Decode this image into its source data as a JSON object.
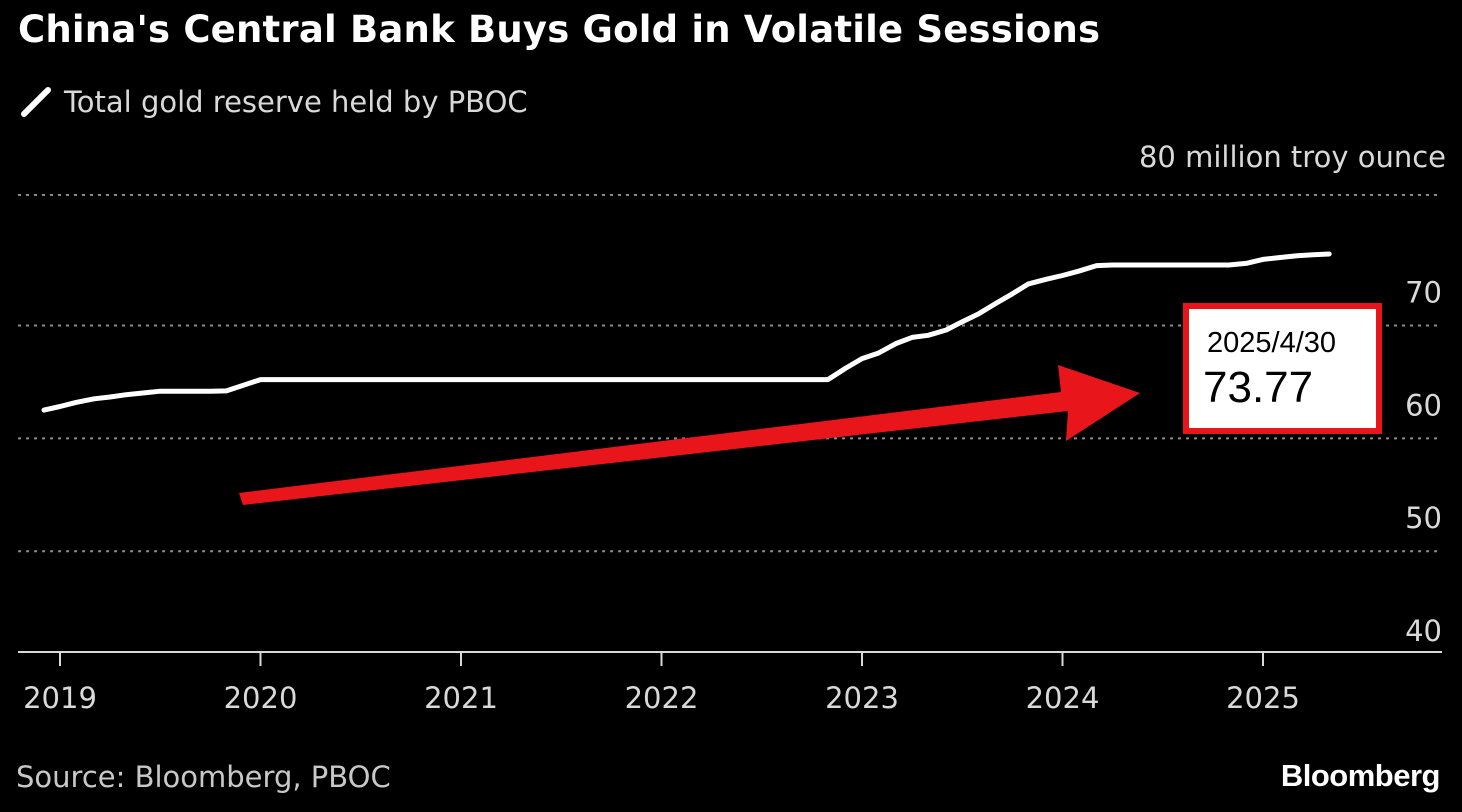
{
  "header": {
    "title": "China's Central Bank Buys Gold in Volatile Sessions"
  },
  "legend": {
    "label": "Total gold reserve held by PBOC"
  },
  "footer": {
    "source": "Source: Bloomberg, PBOC",
    "brand": "Bloomberg"
  },
  "colors": {
    "background": "#000000",
    "line": "#ffffff",
    "grid": "#8a8a8a",
    "annotation": "#e8151b"
  },
  "callout": {
    "date": "2025/4/30",
    "value": "73.77"
  },
  "chart_data": {
    "type": "line",
    "title": "China's Central Bank Buys Gold in Volatile Sessions",
    "ylabel": "80 million troy ounce",
    "xlabel": "",
    "ylim": [
      38.5,
      79
    ],
    "xlim": [
      2018.9,
      2025.85
    ],
    "yticks": [
      40,
      50,
      60,
      70
    ],
    "ytick_labels": [
      "40",
      "50",
      "60",
      "70"
    ],
    "xticks": [
      2019,
      2020,
      2021,
      2022,
      2023,
      2024,
      2025
    ],
    "xtick_labels": [
      "2019",
      "2020",
      "2021",
      "2022",
      "2023",
      "2024",
      "2025"
    ],
    "grid": true,
    "series": [
      {
        "name": "Total gold reserve held by PBOC",
        "x": [
          2018.92,
          2019.0,
          2019.08,
          2019.17,
          2019.25,
          2019.33,
          2019.42,
          2019.5,
          2019.58,
          2019.67,
          2019.75,
          2019.83,
          2020.0,
          2021.0,
          2022.0,
          2022.83,
          2022.92,
          2023.0,
          2023.08,
          2023.17,
          2023.25,
          2023.33,
          2023.42,
          2023.5,
          2023.58,
          2023.67,
          2023.75,
          2023.83,
          2023.92,
          2024.0,
          2024.08,
          2024.17,
          2024.25,
          2024.33,
          2024.42,
          2024.5,
          2024.58,
          2024.67,
          2024.75,
          2024.83,
          2024.92,
          2025.0,
          2025.08,
          2025.17,
          2025.25,
          2025.33
        ],
        "values": [
          59.94,
          60.26,
          60.62,
          60.94,
          61.1,
          61.3,
          61.46,
          61.61,
          61.61,
          61.61,
          61.61,
          61.64,
          62.64,
          62.64,
          62.64,
          62.64,
          63.67,
          64.5,
          64.97,
          65.84,
          66.38,
          66.57,
          67.04,
          67.77,
          68.45,
          69.42,
          70.24,
          71.12,
          71.54,
          71.87,
          72.25,
          72.74,
          72.8,
          72.8,
          72.8,
          72.8,
          72.8,
          72.8,
          72.8,
          72.8,
          72.96,
          73.29,
          73.45,
          73.61,
          73.7,
          73.77
        ]
      }
    ],
    "annotations": [
      {
        "type": "callout",
        "label_date": "2025/4/30",
        "label_value": "73.77"
      },
      {
        "type": "arrow",
        "color": "#e8151b",
        "direction": "up-right"
      }
    ]
  }
}
